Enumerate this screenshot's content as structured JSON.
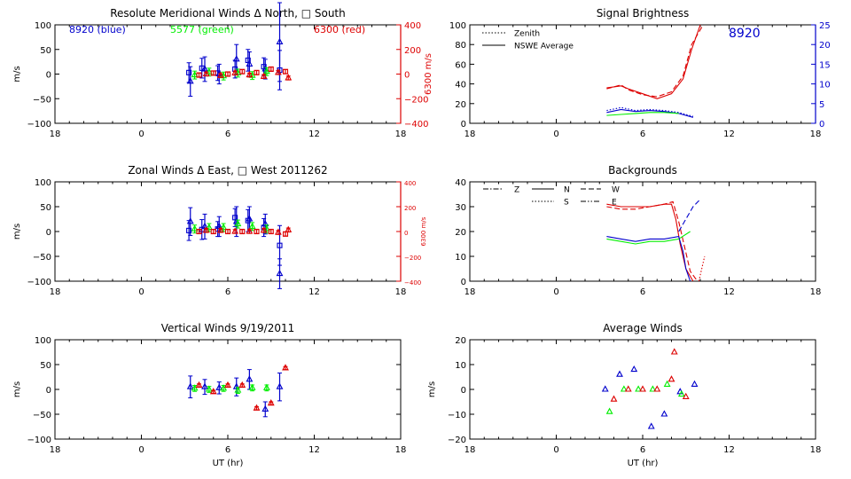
{
  "colors": {
    "blue": "#0000cc",
    "green": "#00ee00",
    "red": "#dd0000",
    "black": "#000000"
  },
  "chart_data": [
    {
      "id": "meridional",
      "type": "scatter",
      "title": "Resolute Meridional Winds Δ North, □ South",
      "ylabel": "m/s",
      "xlabel": "",
      "xlim": [
        18,
        42
      ],
      "xticks": [
        18,
        24,
        30,
        36,
        42
      ],
      "xtick_labels": [
        "18",
        "0",
        "6",
        "12",
        "18"
      ],
      "ylim": [
        -100,
        100
      ],
      "yticks": [
        -100,
        -50,
        0,
        50,
        100
      ],
      "ytick_labels": [
        "−100",
        "−50",
        "0",
        "50",
        "100"
      ],
      "y2": {
        "label": "6300 m/s",
        "ylim": [
          -400,
          400
        ],
        "ticks": [
          -400,
          -200,
          0,
          200,
          400
        ],
        "tick_labels": [
          "−400",
          "−200",
          "0",
          "200",
          "400"
        ],
        "color": "red"
      },
      "texts": [
        {
          "id": "label-8920",
          "text": "8920 (blue)",
          "color": "blue"
        },
        {
          "id": "label-5577",
          "text": "5577 (green)",
          "color": "green"
        },
        {
          "id": "label-6300",
          "text": "6300 (red)",
          "color": "red"
        }
      ],
      "series": [
        {
          "name": "8920 (blue)",
          "color": "blue",
          "marker": "triangle",
          "x": [
            27.4,
            28.4,
            29.4,
            30.6,
            31.5,
            32.6,
            33.6
          ],
          "y": [
            -15,
            10,
            0,
            30,
            20,
            10,
            65
          ],
          "err": [
            30,
            25,
            20,
            30,
            25,
            20,
            80
          ]
        },
        {
          "name": "8920 (blue)",
          "color": "blue",
          "marker": "square",
          "x": [
            27.3,
            28.2,
            29.3,
            30.5,
            31.4,
            32.5,
            33.6
          ],
          "y": [
            3,
            12,
            2,
            10,
            28,
            15,
            8
          ],
          "err": [
            20,
            20,
            15,
            18,
            22,
            18,
            40
          ]
        },
        {
          "name": "5577 (green)",
          "color": "green",
          "marker": "triangle",
          "x": [
            27.7,
            28.7,
            29.7,
            30.7,
            31.7,
            32.7
          ],
          "y": [
            -2,
            4,
            -4,
            2,
            -3,
            5
          ],
          "err": [
            8,
            8,
            8,
            8,
            8,
            8
          ]
        },
        {
          "name": "6300 (red)",
          "color": "red",
          "marker": "square",
          "x": [
            28.0,
            29.0,
            30.0,
            31.0,
            32.0,
            33.0,
            34.0
          ],
          "y": [
            -2,
            2,
            0,
            5,
            3,
            10,
            5
          ],
          "err": [
            4,
            4,
            4,
            4,
            4,
            4,
            4
          ]
        },
        {
          "name": "6300 (red)",
          "color": "red",
          "marker": "triangle",
          "x": [
            28.5,
            29.5,
            30.5,
            31.5,
            32.5,
            33.5,
            34.2
          ],
          "y": [
            0,
            -3,
            2,
            -2,
            -5,
            3,
            -8
          ],
          "err": [
            4,
            4,
            4,
            4,
            4,
            4,
            4
          ]
        }
      ]
    },
    {
      "id": "zonal",
      "type": "scatter",
      "title": "Zonal Winds Δ East, □ West 2011262",
      "ylabel": "m/s",
      "xlabel": "",
      "xlim": [
        18,
        42
      ],
      "xticks": [
        18,
        24,
        30,
        36,
        42
      ],
      "xtick_labels": [
        "18",
        "0",
        "6",
        "12",
        "18"
      ],
      "ylim": [
        -100,
        100
      ],
      "yticks": [
        -100,
        -50,
        0,
        50,
        100
      ],
      "ytick_labels": [
        "−100",
        "−50",
        "0",
        "50",
        "100"
      ],
      "y2": {
        "label": "6300 m/s",
        "ylim": [
          -400,
          400
        ],
        "ticks": [
          -400,
          -200,
          0,
          200,
          400
        ],
        "tick_labels": [
          "−400",
          "−200",
          "0",
          "200",
          "400"
        ],
        "color": "red"
      },
      "texts": [],
      "series": [
        {
          "name": "8920 (blue)",
          "color": "blue",
          "marker": "triangle",
          "x": [
            27.4,
            28.4,
            29.4,
            30.6,
            31.5,
            32.6,
            33.6
          ],
          "y": [
            20,
            10,
            10,
            20,
            25,
            15,
            -85
          ],
          "err": [
            28,
            25,
            20,
            30,
            25,
            20,
            30
          ]
        },
        {
          "name": "8920 (blue)",
          "color": "blue",
          "marker": "square",
          "x": [
            27.3,
            28.2,
            29.3,
            30.5,
            31.4,
            32.5,
            33.6
          ],
          "y": [
            2,
            4,
            5,
            28,
            22,
            8,
            -28
          ],
          "err": [
            20,
            20,
            15,
            18,
            22,
            18,
            40
          ]
        },
        {
          "name": "5577 (green)",
          "color": "green",
          "marker": "triangle",
          "x": [
            27.7,
            28.7,
            29.7,
            30.7,
            31.7,
            32.7
          ],
          "y": [
            5,
            8,
            8,
            15,
            10,
            5
          ],
          "err": [
            8,
            8,
            8,
            8,
            8,
            8
          ]
        },
        {
          "name": "6300 (red)",
          "color": "red",
          "marker": "square",
          "x": [
            28.0,
            29.0,
            30.0,
            31.0,
            32.0,
            33.0,
            34.0
          ],
          "y": [
            0,
            0,
            0,
            0,
            0,
            0,
            -5
          ],
          "err": [
            4,
            4,
            4,
            4,
            4,
            4,
            4
          ]
        },
        {
          "name": "6300 (red)",
          "color": "red",
          "marker": "triangle",
          "x": [
            28.5,
            29.5,
            30.5,
            31.5,
            32.5,
            33.5,
            34.2
          ],
          "y": [
            2,
            2,
            0,
            0,
            2,
            -2,
            3
          ],
          "err": [
            4,
            4,
            4,
            4,
            4,
            4,
            4
          ]
        }
      ]
    },
    {
      "id": "vertical",
      "type": "scatter",
      "title": "Vertical Winds 9/19/2011",
      "ylabel": "m/s",
      "xlabel": "UT (hr)",
      "xlim": [
        18,
        42
      ],
      "xticks": [
        18,
        24,
        30,
        36,
        42
      ],
      "xtick_labels": [
        "18",
        "0",
        "6",
        "12",
        "18"
      ],
      "ylim": [
        -100,
        100
      ],
      "yticks": [
        -100,
        -50,
        0,
        50,
        100
      ],
      "ytick_labels": [
        "−100",
        "−50",
        "0",
        "50",
        "100"
      ],
      "texts": [],
      "series": [
        {
          "name": "8920 (blue)",
          "color": "blue",
          "marker": "triangle",
          "x": [
            27.4,
            28.4,
            29.4,
            30.6,
            31.5,
            32.6,
            33.6
          ],
          "y": [
            5,
            5,
            3,
            5,
            20,
            -40,
            5
          ],
          "err": [
            22,
            15,
            12,
            18,
            20,
            15,
            28
          ]
        },
        {
          "name": "5577 (green)",
          "color": "green",
          "marker": "triangle",
          "x": [
            27.7,
            28.7,
            29.7,
            30.7,
            31.7,
            32.7
          ],
          "y": [
            2,
            0,
            2,
            -2,
            3,
            3
          ],
          "err": [
            6,
            6,
            6,
            6,
            6,
            6
          ]
        },
        {
          "name": "6300 (red)",
          "color": "red",
          "marker": "triangle",
          "x": [
            28.0,
            29.0,
            30.0,
            31.0,
            32.0,
            33.0,
            34.0
          ],
          "y": [
            8,
            -5,
            8,
            8,
            -38,
            -28,
            43
          ],
          "err": [
            3,
            3,
            3,
            3,
            3,
            3,
            3
          ]
        }
      ]
    },
    {
      "id": "brightness",
      "type": "line",
      "title": "Signal Brightness",
      "ylabel": "",
      "xlabel": "",
      "xlim": [
        18,
        42
      ],
      "xticks": [
        18,
        24,
        30,
        36,
        42
      ],
      "xtick_labels": [
        "18",
        "0",
        "6",
        "12",
        "18"
      ],
      "ylim": [
        0,
        100
      ],
      "yticks": [
        0,
        20,
        40,
        60,
        80,
        100
      ],
      "ytick_labels": [
        "0",
        "20",
        "40",
        "60",
        "80",
        "100"
      ],
      "y2": {
        "label": "",
        "ylim": [
          0,
          25
        ],
        "ticks": [
          0,
          5,
          10,
          15,
          20,
          25
        ],
        "tick_labels": [
          "0",
          "5",
          "10",
          "15",
          "20",
          "25"
        ],
        "color": "blue"
      },
      "legend": [
        {
          "label": "Zenith",
          "style": "dotted"
        },
        {
          "label": "NSWE Average",
          "style": "solid"
        }
      ],
      "texts": [
        {
          "id": "label-8920-big",
          "text": "8920",
          "color": "blue"
        }
      ],
      "series": [
        {
          "name": "6300 (red)",
          "color": "red",
          "style": "solid",
          "x": [
            27.5,
            28.5,
            29.0,
            30.0,
            31.0,
            32.0,
            32.8,
            33.4,
            34.0
          ],
          "y": [
            36,
            38,
            35,
            30,
            25,
            30,
            45,
            75,
            100
          ]
        },
        {
          "name": "6300 (red)",
          "color": "red",
          "style": "dashed",
          "x": [
            27.5,
            28.5,
            29.0,
            30.0,
            31.0,
            32.0,
            32.8,
            33.4,
            34.2
          ],
          "y": [
            35,
            39,
            34,
            29,
            27,
            32,
            48,
            80,
            100
          ]
        },
        {
          "name": "8920 (blue)",
          "color": "blue",
          "style": "solid",
          "x": [
            27.5,
            28.5,
            29.5,
            30.5,
            31.5,
            32.5,
            33.5
          ],
          "y": [
            11,
            14,
            12,
            13,
            12,
            10,
            6
          ]
        },
        {
          "name": "8920 (blue)",
          "color": "blue",
          "style": "dotted",
          "x": [
            27.5,
            28.5,
            29.5,
            30.5,
            31.5,
            32.5,
            33.5
          ],
          "y": [
            13,
            16,
            13,
            14,
            13,
            11,
            7
          ]
        },
        {
          "name": "5577 (green)",
          "color": "green",
          "style": "solid",
          "x": [
            27.5,
            28.5,
            29.5,
            30.5,
            31.5,
            32.5
          ],
          "y": [
            8,
            9,
            10,
            11,
            11,
            10
          ]
        }
      ]
    },
    {
      "id": "backgrounds",
      "type": "line",
      "title": "Backgrounds",
      "ylabel": "",
      "xlabel": "",
      "xlim": [
        18,
        42
      ],
      "xticks": [
        18,
        24,
        30,
        36,
        42
      ],
      "xtick_labels": [
        "18",
        "0",
        "6",
        "12",
        "18"
      ],
      "ylim": [
        0,
        40
      ],
      "yticks": [
        0,
        10,
        20,
        30,
        40
      ],
      "ytick_labels": [
        "0",
        "10",
        "20",
        "30",
        "40"
      ],
      "legend": [
        {
          "label": "Z",
          "style": "dashdot"
        },
        {
          "label": "N",
          "style": "solid"
        },
        {
          "label": "W",
          "style": "dashed"
        },
        {
          "label": "S",
          "style": "dotted"
        },
        {
          "label": "E",
          "style": "dashdotdot"
        }
      ],
      "texts": [],
      "series": [
        {
          "name": "6300 (red)",
          "color": "red",
          "style": "solid",
          "x": [
            27.5,
            28.5,
            29.5,
            30.5,
            31.5,
            32.0,
            32.3,
            32.6,
            33.0,
            33.5
          ],
          "y": [
            31,
            30,
            30,
            30,
            31,
            31,
            25,
            15,
            5,
            0
          ]
        },
        {
          "name": "6300 (red)",
          "color": "red",
          "style": "dashed",
          "x": [
            27.5,
            28.5,
            29.5,
            30.5,
            31.5,
            32.1,
            32.5,
            32.9,
            33.3,
            33.8
          ],
          "y": [
            30,
            29,
            29,
            30,
            31,
            32,
            24,
            14,
            4,
            0
          ]
        },
        {
          "name": "6300 (red)",
          "color": "red",
          "style": "dotted",
          "x": [
            33.9,
            34.1,
            34.3
          ],
          "y": [
            0,
            5,
            10
          ]
        },
        {
          "name": "5577 (green)",
          "color": "green",
          "style": "solid",
          "x": [
            27.5,
            28.5,
            29.5,
            30.5,
            31.5,
            32.5,
            33.3
          ],
          "y": [
            17,
            16,
            15,
            16,
            16,
            17,
            20
          ]
        },
        {
          "name": "8920 (blue)",
          "color": "blue",
          "style": "solid",
          "x": [
            27.5,
            28.5,
            29.5,
            30.5,
            31.5,
            32.5,
            32.8,
            33.0,
            33.3
          ],
          "y": [
            18,
            17,
            16,
            17,
            17,
            18,
            12,
            5,
            0
          ]
        },
        {
          "name": "8920 (blue)",
          "color": "blue",
          "style": "dashed",
          "x": [
            32.5,
            33.0,
            33.5,
            34.0
          ],
          "y": [
            20,
            25,
            30,
            33
          ]
        }
      ]
    },
    {
      "id": "average",
      "type": "scatter",
      "title": "Average Winds",
      "ylabel": "m/s",
      "xlabel": "UT (hr)",
      "xlim": [
        18,
        42
      ],
      "xticks": [
        18,
        24,
        30,
        36,
        42
      ],
      "xtick_labels": [
        "18",
        "0",
        "6",
        "12",
        "18"
      ],
      "ylim": [
        -20,
        20
      ],
      "yticks": [
        -20,
        -10,
        0,
        10,
        20
      ],
      "ytick_labels": [
        "−20",
        "−10",
        "0",
        "10",
        "20"
      ],
      "texts": [],
      "series": [
        {
          "name": "8920 (blue)",
          "color": "blue",
          "marker": "triangle",
          "x": [
            27.4,
            28.4,
            29.4,
            30.6,
            31.5,
            32.6,
            33.6
          ],
          "y": [
            0,
            6,
            8,
            -15,
            -10,
            -1,
            2
          ]
        },
        {
          "name": "5577 (green)",
          "color": "green",
          "marker": "triangle",
          "x": [
            27.7,
            28.7,
            29.7,
            30.7,
            31.7,
            32.7
          ],
          "y": [
            -9,
            0,
            0,
            0,
            2,
            -2
          ]
        },
        {
          "name": "6300 (red)",
          "color": "red",
          "marker": "triangle",
          "x": [
            28.0,
            29.0,
            30.0,
            31.0,
            32.0,
            33.0
          ],
          "y": [
            -4,
            0,
            0,
            0,
            4,
            -3
          ]
        },
        {
          "name": "6300 (red)",
          "color": "red",
          "marker": "triangle",
          "x": [
            32.2
          ],
          "y": [
            15
          ]
        }
      ]
    }
  ]
}
